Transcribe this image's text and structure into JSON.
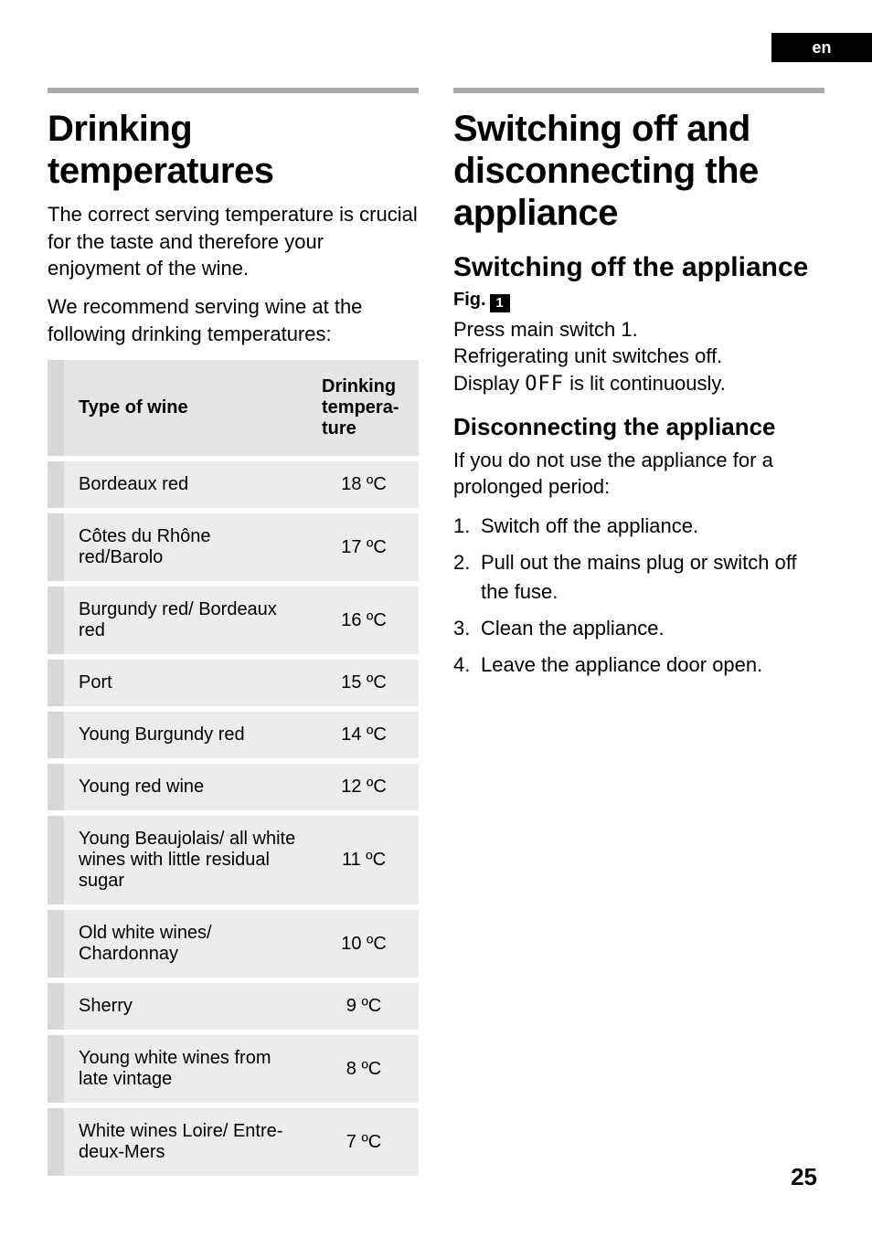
{
  "lang_tab": "en",
  "page_number": "25",
  "left": {
    "heading": "Drinking temperatures",
    "p1": "The correct serving temperature is crucial for the taste and therefore your enjoyment of the wine.",
    "p2": "We recommend serving wine at the following drinking temperatures:",
    "table": {
      "col1": "Type of wine",
      "col2": "Drinking tempera­ture",
      "rows": [
        {
          "wine": "Bordeaux red",
          "temp": "18 ºC"
        },
        {
          "wine": "Côtes du Rhône red/Barolo",
          "temp": "17 ºC"
        },
        {
          "wine": "Burgundy red/ Bordeaux red",
          "temp": "16 ºC"
        },
        {
          "wine": "Port",
          "temp": "15 ºC"
        },
        {
          "wine": "Young Burgundy red",
          "temp": "14 ºC"
        },
        {
          "wine": "Young red wine",
          "temp": "12 ºC"
        },
        {
          "wine": "Young Beaujolais/ all white wines with little residual sugar",
          "temp": "11 ºC"
        },
        {
          "wine": "Old white wines/ Chardonnay",
          "temp": "10 ºC"
        },
        {
          "wine": "Sherry",
          "temp": "9 ºC"
        },
        {
          "wine": "Young white wines from late vintage",
          "temp": "8 ºC"
        },
        {
          "wine": "White wines Loire/ Entre-deux-Mers",
          "temp": "7 ºC"
        }
      ]
    }
  },
  "right": {
    "heading": "Switching off and disconnecting the appliance",
    "sec1": {
      "title": "Switching off the appliance",
      "fig_label": "Fig.",
      "fig_num": "1",
      "l1a": "Press main switch ",
      "l1b": "1",
      "l1c": ".",
      "l2": "Refrigerating unit switches off.",
      "l3a": "Display ",
      "l3b": "OFF",
      "l3c": " is lit continuously."
    },
    "sec2": {
      "title": "Disconnecting the appliance",
      "intro": "If you do not use the appliance for a prolonged period:",
      "steps": [
        "Switch off the appliance.",
        "Pull out the mains plug or switch off the fuse.",
        "Clean the appliance.",
        "Leave the appliance door open."
      ]
    }
  }
}
